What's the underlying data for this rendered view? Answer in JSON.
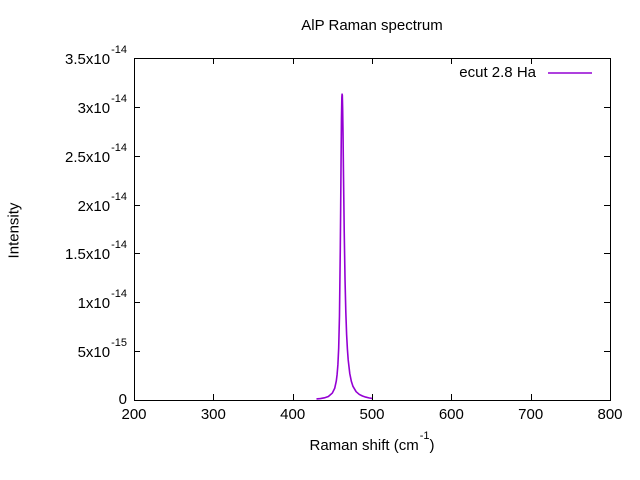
{
  "title": "AlP Raman spectrum",
  "legend": {
    "label": "ecut 2.8 Ha",
    "color": "#9400d3",
    "position": "top-right"
  },
  "axes": {
    "x": {
      "label_pre": "Raman shift (cm",
      "label_sup": "-1",
      "label_post": ")",
      "tick_labels": [
        "200",
        "300",
        "400",
        "500",
        "600",
        "700",
        "800"
      ],
      "tick_values": [
        200,
        300,
        400,
        500,
        600,
        700,
        800
      ],
      "range": [
        200,
        800
      ]
    },
    "y": {
      "label": "Intensity",
      "tick_labels": [
        "0",
        "5x10^-15",
        "1x10^-14",
        "1.5x10^-14",
        "2x10^-14",
        "2.5x10^-14",
        "3x10^-14",
        "3.5x10^-14"
      ],
      "tick_values": [
        0,
        5e-15,
        1e-14,
        1.5e-14,
        2e-14,
        2.5e-14,
        3e-14,
        3.5e-14
      ],
      "range": [
        0,
        3.5e-14
      ]
    }
  },
  "colors": {
    "line": "#9400d3",
    "axis": "#000000",
    "background": "#ffffff",
    "text": "#000000"
  },
  "chart_data": {
    "type": "line",
    "title": "AlP Raman spectrum",
    "xlabel": "Raman shift (cm^-1)",
    "ylabel": "Intensity",
    "xlim": [
      200,
      800
    ],
    "ylim": [
      0,
      3.5e-14
    ],
    "grid": false,
    "legend_position": "top-right",
    "series": [
      {
        "name": "ecut 2.8 Ha",
        "color": "#9400d3",
        "peak": {
          "shape": "lorentzian",
          "center": 462.4,
          "height": 3.13e-14,
          "hwhm": 1.9
        },
        "points": [
          [
            430,
            1.06e-16
          ],
          [
            435,
            1.48e-16
          ],
          [
            440,
            2.2e-16
          ],
          [
            445,
            3.6e-16
          ],
          [
            450,
            7.1e-16
          ],
          [
            453,
            1.2e-15
          ],
          [
            455,
            1.95e-15
          ],
          [
            456,
            2.6e-15
          ],
          [
            457,
            3.6e-15
          ],
          [
            458,
            5.3e-15
          ],
          [
            459,
            8.6e-15
          ],
          [
            460,
            1.53e-14
          ],
          [
            460.5,
            1.95e-14
          ],
          [
            461,
            2.45e-14
          ],
          [
            461.5,
            2.88e-14
          ],
          [
            462,
            3.1e-14
          ],
          [
            462.3,
            3.13e-14
          ],
          [
            462.6,
            3.12e-14
          ],
          [
            463,
            2.98e-14
          ],
          [
            463.5,
            2.72e-14
          ],
          [
            464,
            2.35e-14
          ],
          [
            465,
            1.72e-14
          ],
          [
            466,
            1.23e-14
          ],
          [
            467,
            9e-15
          ],
          [
            468,
            6.7e-15
          ],
          [
            469,
            5.2e-15
          ],
          [
            470,
            4.1e-15
          ],
          [
            472,
            2.7e-15
          ],
          [
            474,
            1.9e-15
          ],
          [
            476,
            1.4e-15
          ],
          [
            480,
            8.5e-16
          ],
          [
            484,
            5.7e-16
          ],
          [
            488,
            4.1e-16
          ],
          [
            492,
            3e-16
          ],
          [
            496,
            2.2e-16
          ],
          [
            500,
            1.6e-16
          ]
        ]
      }
    ]
  }
}
